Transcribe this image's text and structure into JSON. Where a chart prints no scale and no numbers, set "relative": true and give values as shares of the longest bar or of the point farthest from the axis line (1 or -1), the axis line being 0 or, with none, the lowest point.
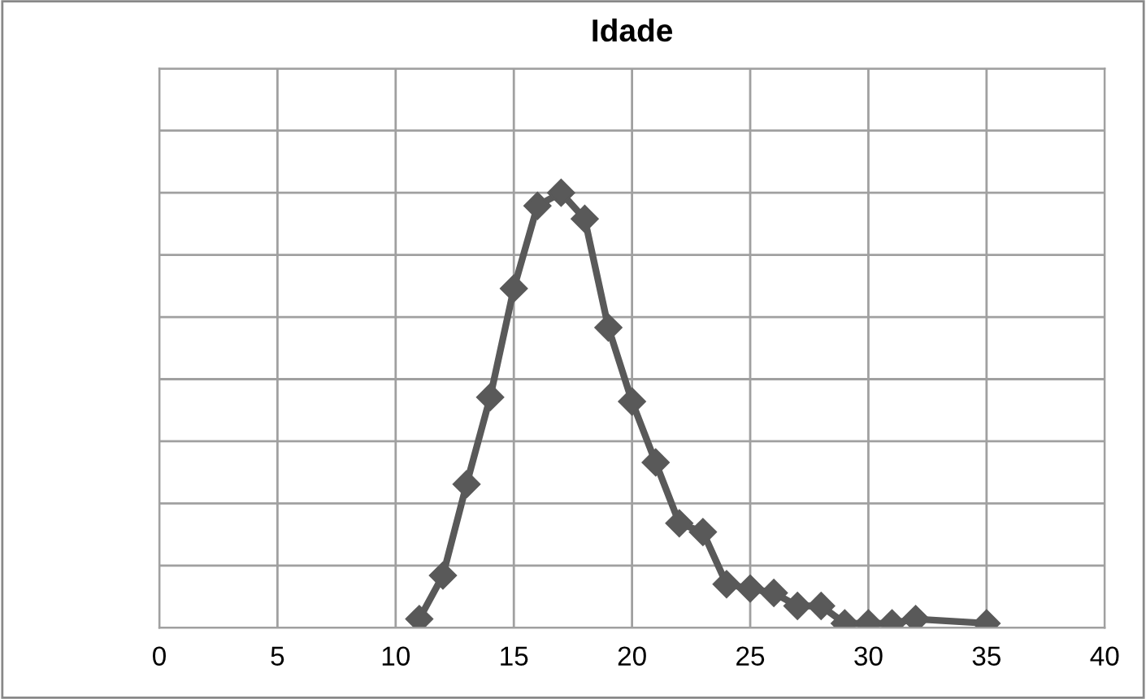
{
  "chart_data": {
    "type": "line",
    "title": "Idade",
    "relative": true,
    "x": [
      11,
      12,
      13,
      14,
      15,
      16,
      17,
      18,
      19,
      20,
      21,
      22,
      23,
      24,
      25,
      26,
      27,
      28,
      29,
      30,
      31,
      32,
      35
    ],
    "series": [
      {
        "color": "#595959",
        "values": [
          0.02,
          0.12,
          0.33,
          0.53,
          0.78,
          0.97,
          1.0,
          0.94,
          0.69,
          0.52,
          0.38,
          0.24,
          0.22,
          0.1,
          0.09,
          0.08,
          0.05,
          0.05,
          0.01,
          0.01,
          0.01,
          0.02,
          0.01
        ]
      }
    ],
    "xlim": [
      0,
      40
    ],
    "xticks": [
      0,
      5,
      10,
      15,
      20,
      25,
      30,
      35,
      40
    ],
    "grid": true,
    "tick_labels": "x",
    "marker": "diamond",
    "line_style": "solid",
    "legend": false
  }
}
